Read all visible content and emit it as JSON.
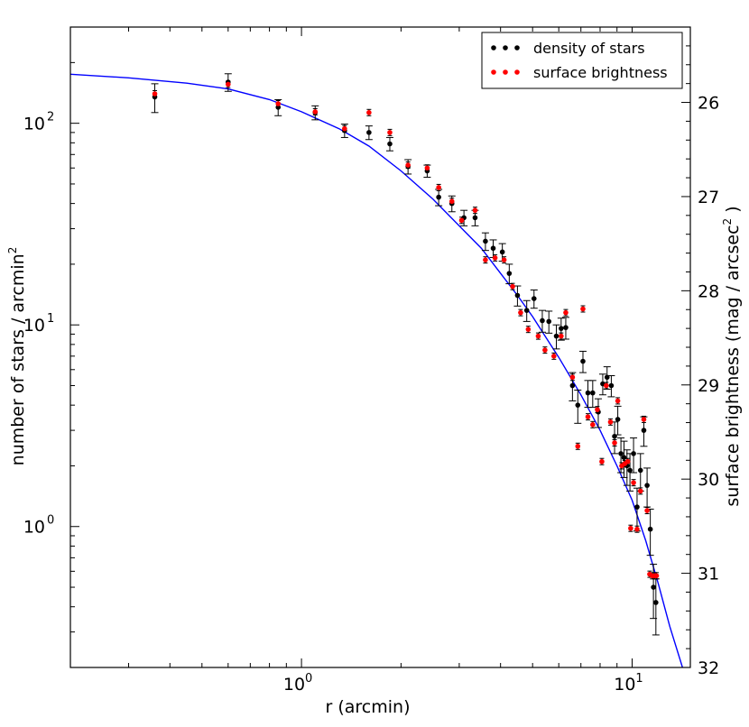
{
  "chart_data": {
    "type": "scatter",
    "xlabel": "r (arcmin)",
    "ylabel": "number of stars / arcmin",
    "ylabel_sup": "2",
    "y2label": "surface brightness (mag / arcsec",
    "y2label_sup": "2",
    "y2label_end": " )",
    "xscale": "log",
    "yscale": "log",
    "xlim": [
      0.2,
      15
    ],
    "ylim": [
      0.2,
      300
    ],
    "y2lim": [
      32,
      25.2
    ],
    "x_ticks": [
      {
        "value": 1,
        "base": "10",
        "exp": "0"
      },
      {
        "value": 10,
        "base": "10",
        "exp": "1"
      }
    ],
    "y_ticks": [
      {
        "value": 1,
        "base": "10",
        "exp": "0"
      },
      {
        "value": 10,
        "base": "10",
        "exp": "1"
      },
      {
        "value": 100,
        "base": "10",
        "exp": "2"
      }
    ],
    "y2_ticks": [
      "26",
      "27",
      "28",
      "29",
      "30",
      "31",
      "32"
    ],
    "legend": {
      "placement": "top-right",
      "entries": [
        {
          "label": "density of stars",
          "color": "#000000"
        },
        {
          "label": "surface brightness",
          "color": "#ff0000"
        }
      ]
    },
    "model_curve": {
      "color": "#0000ff",
      "x": [
        0.2,
        0.3,
        0.45,
        0.6,
        0.8,
        1.0,
        1.3,
        1.6,
        2.0,
        2.5,
        3.0,
        3.5,
        4.0,
        4.5,
        5.0,
        5.5,
        6.0,
        7.0,
        8.0,
        9.0,
        10.0,
        11.0,
        12.0,
        13.0,
        14.2
      ],
      "y": [
        175,
        168,
        158,
        148,
        131,
        114,
        94,
        77,
        58,
        42,
        31,
        24,
        18,
        14,
        11,
        8.6,
        6.9,
        4.5,
        3.0,
        2.0,
        1.35,
        0.85,
        0.52,
        0.32,
        0.2
      ]
    },
    "series": [
      {
        "name": "density of stars",
        "color": "#000000",
        "x": [
          0.36,
          0.6,
          0.85,
          1.1,
          1.35,
          1.6,
          1.85,
          2.1,
          2.4,
          2.6,
          2.85,
          3.1,
          3.35,
          3.6,
          3.8,
          4.05,
          4.25,
          4.5,
          4.8,
          5.05,
          5.35,
          5.6,
          5.9,
          6.1,
          6.3,
          6.6,
          6.85,
          7.1,
          7.35,
          7.6,
          7.9,
          8.15,
          8.4,
          8.65,
          8.85,
          9.05,
          9.25,
          9.45,
          9.65,
          9.85,
          10.1,
          10.35,
          10.6,
          10.85,
          11.1,
          11.35,
          11.6,
          11.8
        ],
        "y": [
          135,
          160,
          120,
          113,
          92,
          90,
          79,
          61,
          58,
          43,
          40,
          34,
          34,
          26,
          24,
          23,
          18,
          14,
          11.8,
          13.5,
          10.5,
          10.4,
          8.8,
          9.6,
          9.7,
          5,
          4,
          6.6,
          4.6,
          4.6,
          3.7,
          5.1,
          5.5,
          5,
          2.8,
          3.4,
          2.3,
          2.2,
          2,
          1.9,
          2.3,
          1.25,
          1.9,
          3,
          1.6,
          0.97,
          0.5,
          0.42
        ],
        "err": [
          22,
          16,
          11,
          9,
          7,
          7,
          6,
          5,
          4,
          4,
          3.6,
          3,
          3,
          2.6,
          2.4,
          2.3,
          2,
          1.6,
          1.4,
          1.4,
          1.3,
          1.3,
          1.2,
          1.2,
          1.2,
          0.8,
          0.75,
          0.8,
          0.7,
          0.7,
          0.6,
          0.6,
          0.7,
          0.6,
          0.5,
          0.55,
          0.45,
          0.45,
          0.4,
          0.4,
          0.45,
          0.3,
          0.4,
          0.5,
          0.35,
          0.25,
          0.15,
          0.13
        ]
      },
      {
        "name": "surface brightness",
        "color": "#ff0000",
        "x": [
          0.36,
          0.6,
          0.85,
          1.1,
          1.35,
          1.6,
          1.85,
          2.1,
          2.4,
          2.6,
          2.85,
          3.05,
          3.35,
          3.6,
          3.85,
          4.1,
          4.35,
          4.6,
          4.85,
          5.2,
          5.45,
          5.8,
          6.1,
          6.3,
          6.6,
          6.85,
          7.1,
          7.35,
          7.6,
          7.85,
          8.1,
          8.35,
          8.6,
          8.85,
          9.05,
          9.3,
          9.5,
          9.7,
          9.9,
          10.1,
          10.35,
          10.6,
          10.85,
          11.1,
          11.3,
          11.5,
          11.7,
          11.85
        ],
        "y": [
          140,
          156,
          125,
          114,
          94,
          113,
          90,
          62,
          60,
          48,
          41,
          33,
          37,
          21,
          21.5,
          21,
          15.5,
          11.5,
          9.5,
          8.8,
          7.5,
          7,
          8.8,
          11.5,
          5.5,
          2.5,
          12,
          3.5,
          3.2,
          3.8,
          2.1,
          5,
          3.3,
          2.6,
          4.2,
          2,
          2.05,
          2.1,
          0.98,
          1.65,
          0.97,
          1.5,
          3.4,
          1.2,
          0.58,
          0.57,
          0.57,
          0.57
        ]
      }
    ]
  }
}
